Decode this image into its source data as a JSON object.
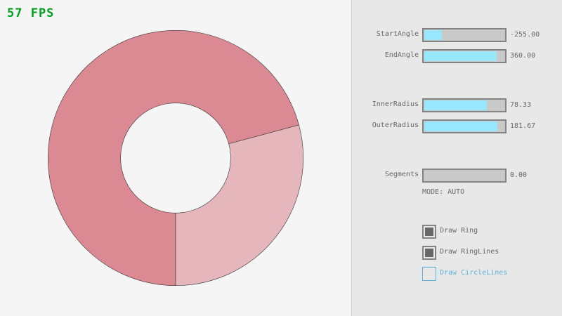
{
  "fps": "57 FPS",
  "ring": {
    "center_fill": "#db8a93",
    "light_fill": "#e5b7bc",
    "outline": "#333333"
  },
  "controls": {
    "sliders": [
      {
        "label": "StartAngle",
        "value_text": "-255.00",
        "value": -255,
        "min": -450,
        "max": 450
      },
      {
        "label": "EndAngle",
        "value_text": "360.00",
        "value": 360,
        "min": -450,
        "max": 450
      },
      {
        "label": "InnerRadius",
        "value_text": "78.33",
        "value": 78.33,
        "min": 0,
        "max": 100
      },
      {
        "label": "OuterRadius",
        "value_text": "181.67",
        "value": 181.67,
        "min": 0,
        "max": 200
      },
      {
        "label": "Segments",
        "value_text": "0.00",
        "value": 0,
        "min": 0,
        "max": 100
      }
    ],
    "mode": "MODE: AUTO",
    "checkboxes": [
      {
        "label": "Draw Ring",
        "checked": true
      },
      {
        "label": "Draw RingLines",
        "checked": true
      },
      {
        "label": "Draw CircleLines",
        "checked": false,
        "focused": true
      }
    ],
    "accent": "#97e8ff",
    "focus_color": "#5bb2d9"
  }
}
